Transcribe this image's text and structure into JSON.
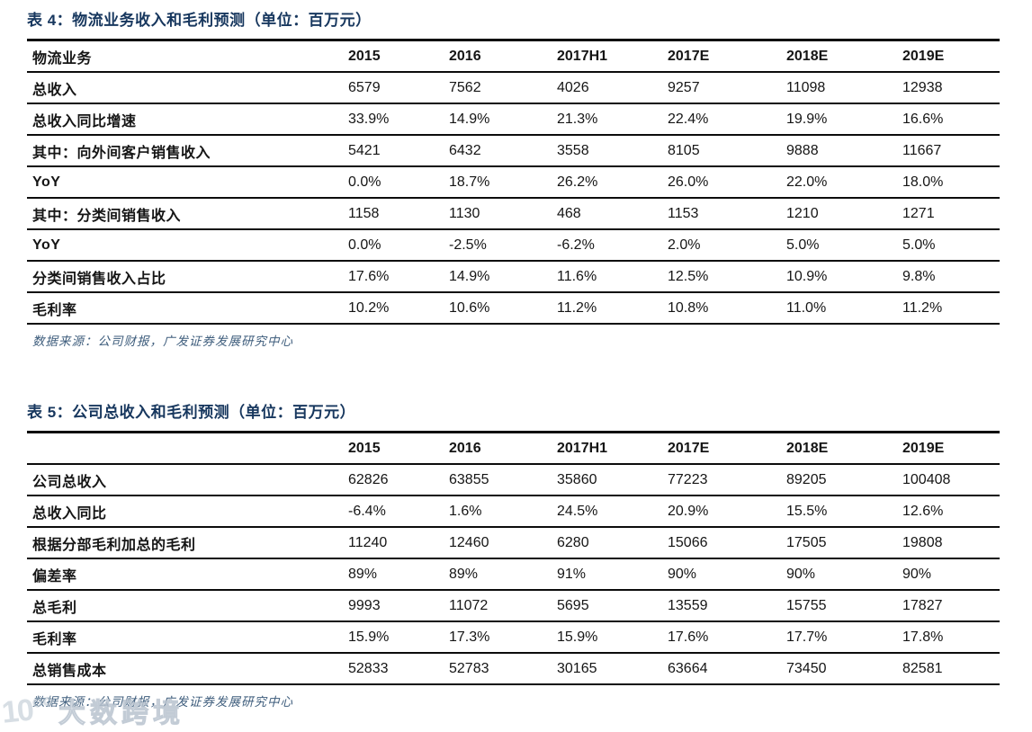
{
  "colors": {
    "title_navy": "#17375e",
    "source_blue": "#3f5e7d",
    "table_line": "#0c0c0c",
    "watermark_gray": "#b7c3ce"
  },
  "tables": {
    "table4": {
      "title": "表 4：物流业务收入和毛利预测（单位：百万元）",
      "columns": [
        "物流业务",
        "2015",
        "2016",
        "2017H1",
        "2017E",
        "2018E",
        "2019E"
      ],
      "rows": [
        {
          "label": "总收入",
          "values": [
            "6579",
            "7562",
            "4026",
            "9257",
            "11098",
            "12938"
          ]
        },
        {
          "label": "总收入同比增速",
          "values": [
            "33.9%",
            "14.9%",
            "21.3%",
            "22.4%",
            "19.9%",
            "16.6%"
          ]
        },
        {
          "label": "其中：向外间客户销售收入",
          "values": [
            "5421",
            "6432",
            "3558",
            "8105",
            "9888",
            "11667"
          ]
        },
        {
          "label": "YoY",
          "values": [
            "0.0%",
            "18.7%",
            "26.2%",
            "26.0%",
            "22.0%",
            "18.0%"
          ]
        },
        {
          "label": "其中：分类间销售收入",
          "values": [
            "1158",
            "1130",
            "468",
            "1153",
            "1210",
            "1271"
          ]
        },
        {
          "label": "YoY",
          "values": [
            "0.0%",
            "-2.5%",
            "-6.2%",
            "2.0%",
            "5.0%",
            "5.0%"
          ]
        },
        {
          "label": "分类间销售收入占比",
          "values": [
            "17.6%",
            "14.9%",
            "11.6%",
            "12.5%",
            "10.9%",
            "9.8%"
          ]
        },
        {
          "label": "毛利率",
          "values": [
            "10.2%",
            "10.6%",
            "11.2%",
            "10.8%",
            "11.0%",
            "11.2%"
          ]
        }
      ],
      "source": "数据来源：公司财报，广发证券发展研究中心"
    },
    "table5": {
      "title": "表 5：公司总收入和毛利预测（单位：百万元）",
      "columns": [
        "",
        "2015",
        "2016",
        "2017H1",
        "2017E",
        "2018E",
        "2019E"
      ],
      "rows": [
        {
          "label": "公司总收入",
          "values": [
            "62826",
            "63855",
            "35860",
            "77223",
            "89205",
            "100408"
          ]
        },
        {
          "label": "总收入同比",
          "values": [
            "-6.4%",
            "1.6%",
            "24.5%",
            "20.9%",
            "15.5%",
            "12.6%"
          ]
        },
        {
          "label": "根据分部毛利加总的毛利",
          "values": [
            "11240",
            "12460",
            "6280",
            "15066",
            "17505",
            "19808"
          ]
        },
        {
          "label": "偏差率",
          "values": [
            "89%",
            "89%",
            "91%",
            "90%",
            "90%",
            "90%"
          ]
        },
        {
          "label": "总毛利",
          "values": [
            "9993",
            "11072",
            "5695",
            "13559",
            "15755",
            "17827"
          ]
        },
        {
          "label": "毛利率",
          "values": [
            "15.9%",
            "17.3%",
            "15.9%",
            "17.6%",
            "17.7%",
            "17.8%"
          ]
        },
        {
          "label": "总销售成本",
          "values": [
            "52833",
            "52783",
            "30165",
            "63664",
            "73450",
            "82581"
          ]
        }
      ],
      "source": "数据来源：公司财报，广发证券发展研究中心"
    }
  },
  "watermark": {
    "logo": "10°°",
    "text": "大数跨境"
  }
}
